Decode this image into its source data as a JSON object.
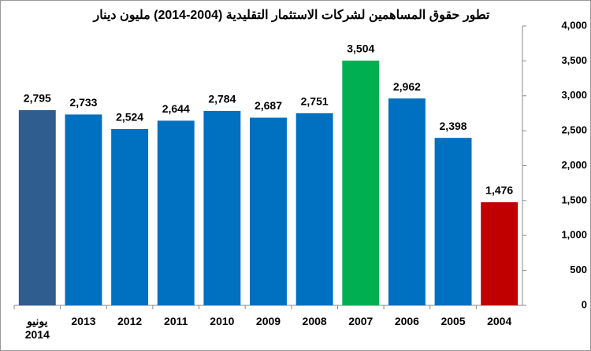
{
  "chart_data": {
    "type": "bar",
    "title": "تطور حقوق المساهمين لشركات الاستثمار التقليدية (2004-2014) مليون دينار",
    "categories": [
      "يونيو 2014",
      "2013",
      "2012",
      "2011",
      "2010",
      "2009",
      "2008",
      "2007",
      "2006",
      "2005",
      "2004"
    ],
    "values": [
      2795,
      2733,
      2524,
      2644,
      2784,
      2687,
      2751,
      3504,
      2962,
      2398,
      1476
    ],
    "value_labels": [
      "2,795",
      "2,733",
      "2,524",
      "2,644",
      "2,784",
      "2,687",
      "2,751",
      "3,504",
      "2,962",
      "2,398",
      "1,476"
    ],
    "colors": [
      "#2f5d8f",
      "#0070c0",
      "#0070c0",
      "#0070c0",
      "#0070c0",
      "#0070c0",
      "#0070c0",
      "#00b050",
      "#0070c0",
      "#0070c0",
      "#c00000"
    ],
    "ylim": [
      0,
      4000
    ],
    "yticks": [
      0,
      500,
      {
        "value": 1000,
        "label": "1,000"
      },
      {
        "value": 1500,
        "label": "1,500"
      },
      {
        "value": 2000,
        "label": "2,000"
      },
      {
        "value": 2500,
        "label": "2,500"
      },
      {
        "value": 3000,
        "label": "3,000"
      },
      {
        "value": 3500,
        "label": "3,500"
      },
      {
        "value": 4000,
        "label": "4,000"
      }
    ],
    "y_axis_side": "right",
    "grid": false
  }
}
